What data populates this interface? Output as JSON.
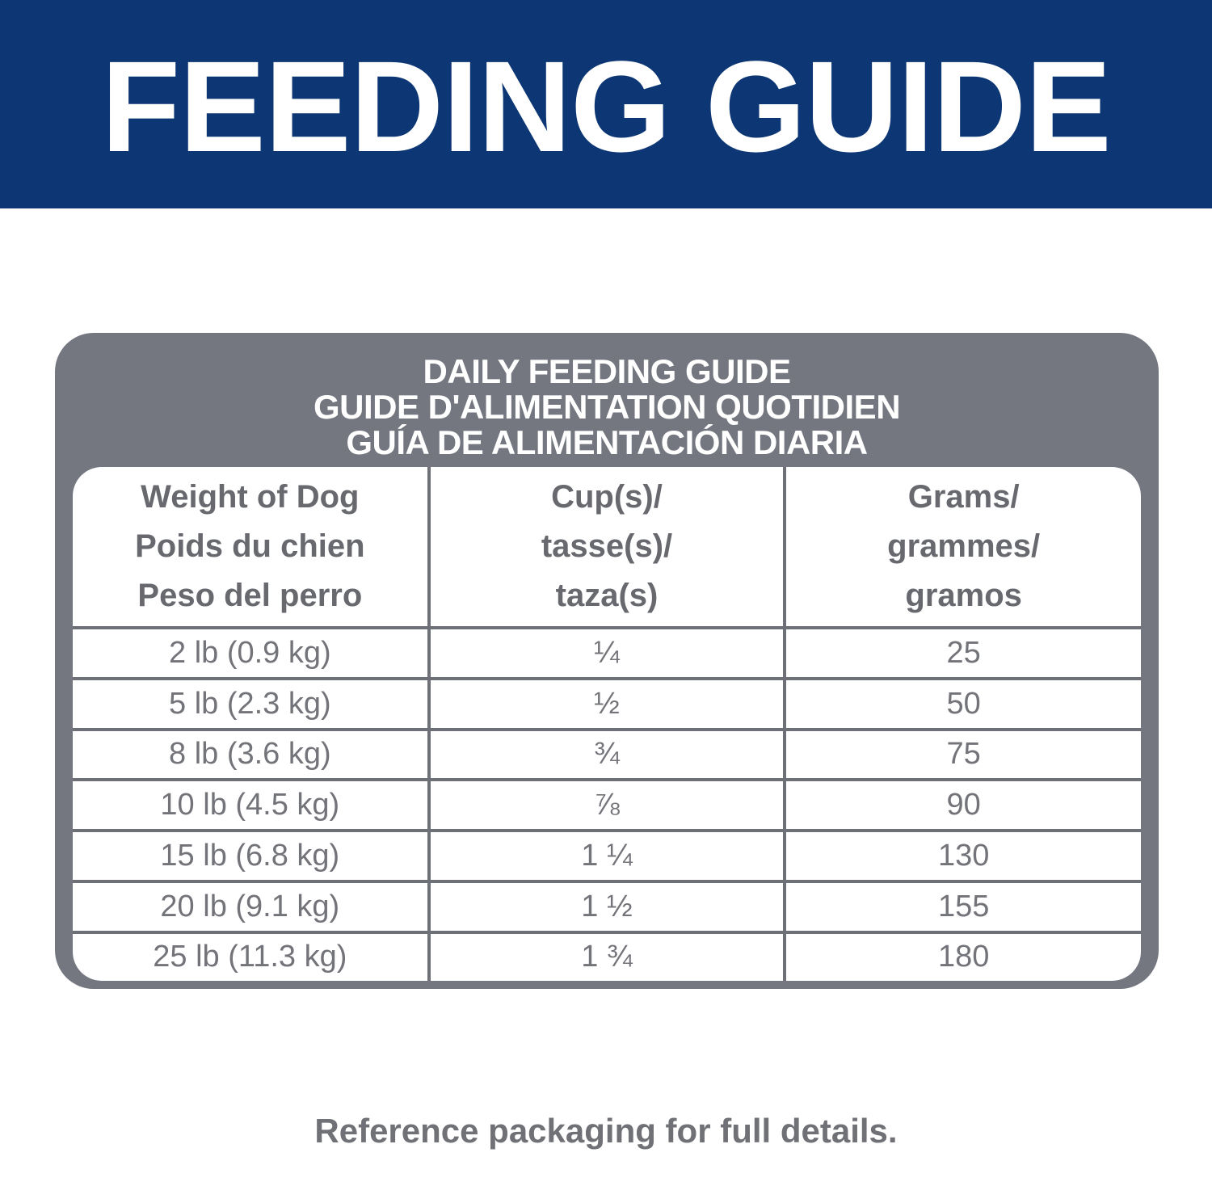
{
  "banner": {
    "title": "FEEDING GUIDE",
    "bg_color": "#0d3774",
    "text_color": "#ffffff"
  },
  "card": {
    "bg_color": "#747780",
    "title_lines": [
      "DAILY FEEDING GUIDE",
      "GUIDE D'ALIMENTATION QUOTIDIEN",
      "GUÍA DE ALIMENTACIÓN DIARIA"
    ]
  },
  "table": {
    "border_color": "#6e7077",
    "header_text_color": "#67696f",
    "body_text_color": "#73747a",
    "columns": [
      {
        "lines": [
          "Weight of Dog",
          "Poids du chien",
          "Peso del perro"
        ]
      },
      {
        "lines": [
          "Cup(s)/",
          "tasse(s)/",
          "taza(s)"
        ]
      },
      {
        "lines": [
          "Grams/",
          "grammes/",
          "gramos"
        ]
      }
    ],
    "rows": [
      {
        "weight": "2 lb (0.9 kg)",
        "cups": "¼",
        "grams": "25"
      },
      {
        "weight": "5 lb (2.3 kg)",
        "cups": "½",
        "grams": "50"
      },
      {
        "weight": "8 lb (3.6 kg)",
        "cups": "¾",
        "grams": "75"
      },
      {
        "weight": "10 lb (4.5 kg)",
        "cups": "⅞",
        "grams": "90"
      },
      {
        "weight": "15 lb (6.8 kg)",
        "cups": "1 ¼",
        "grams": "130"
      },
      {
        "weight": "20 lb (9.1 kg)",
        "cups": "1 ½",
        "grams": "155"
      },
      {
        "weight": "25 lb (11.3 kg)",
        "cups": "1 ¾",
        "grams": "180"
      }
    ]
  },
  "footer": {
    "note": "Reference packaging for full details.",
    "text_color": "#707176"
  }
}
